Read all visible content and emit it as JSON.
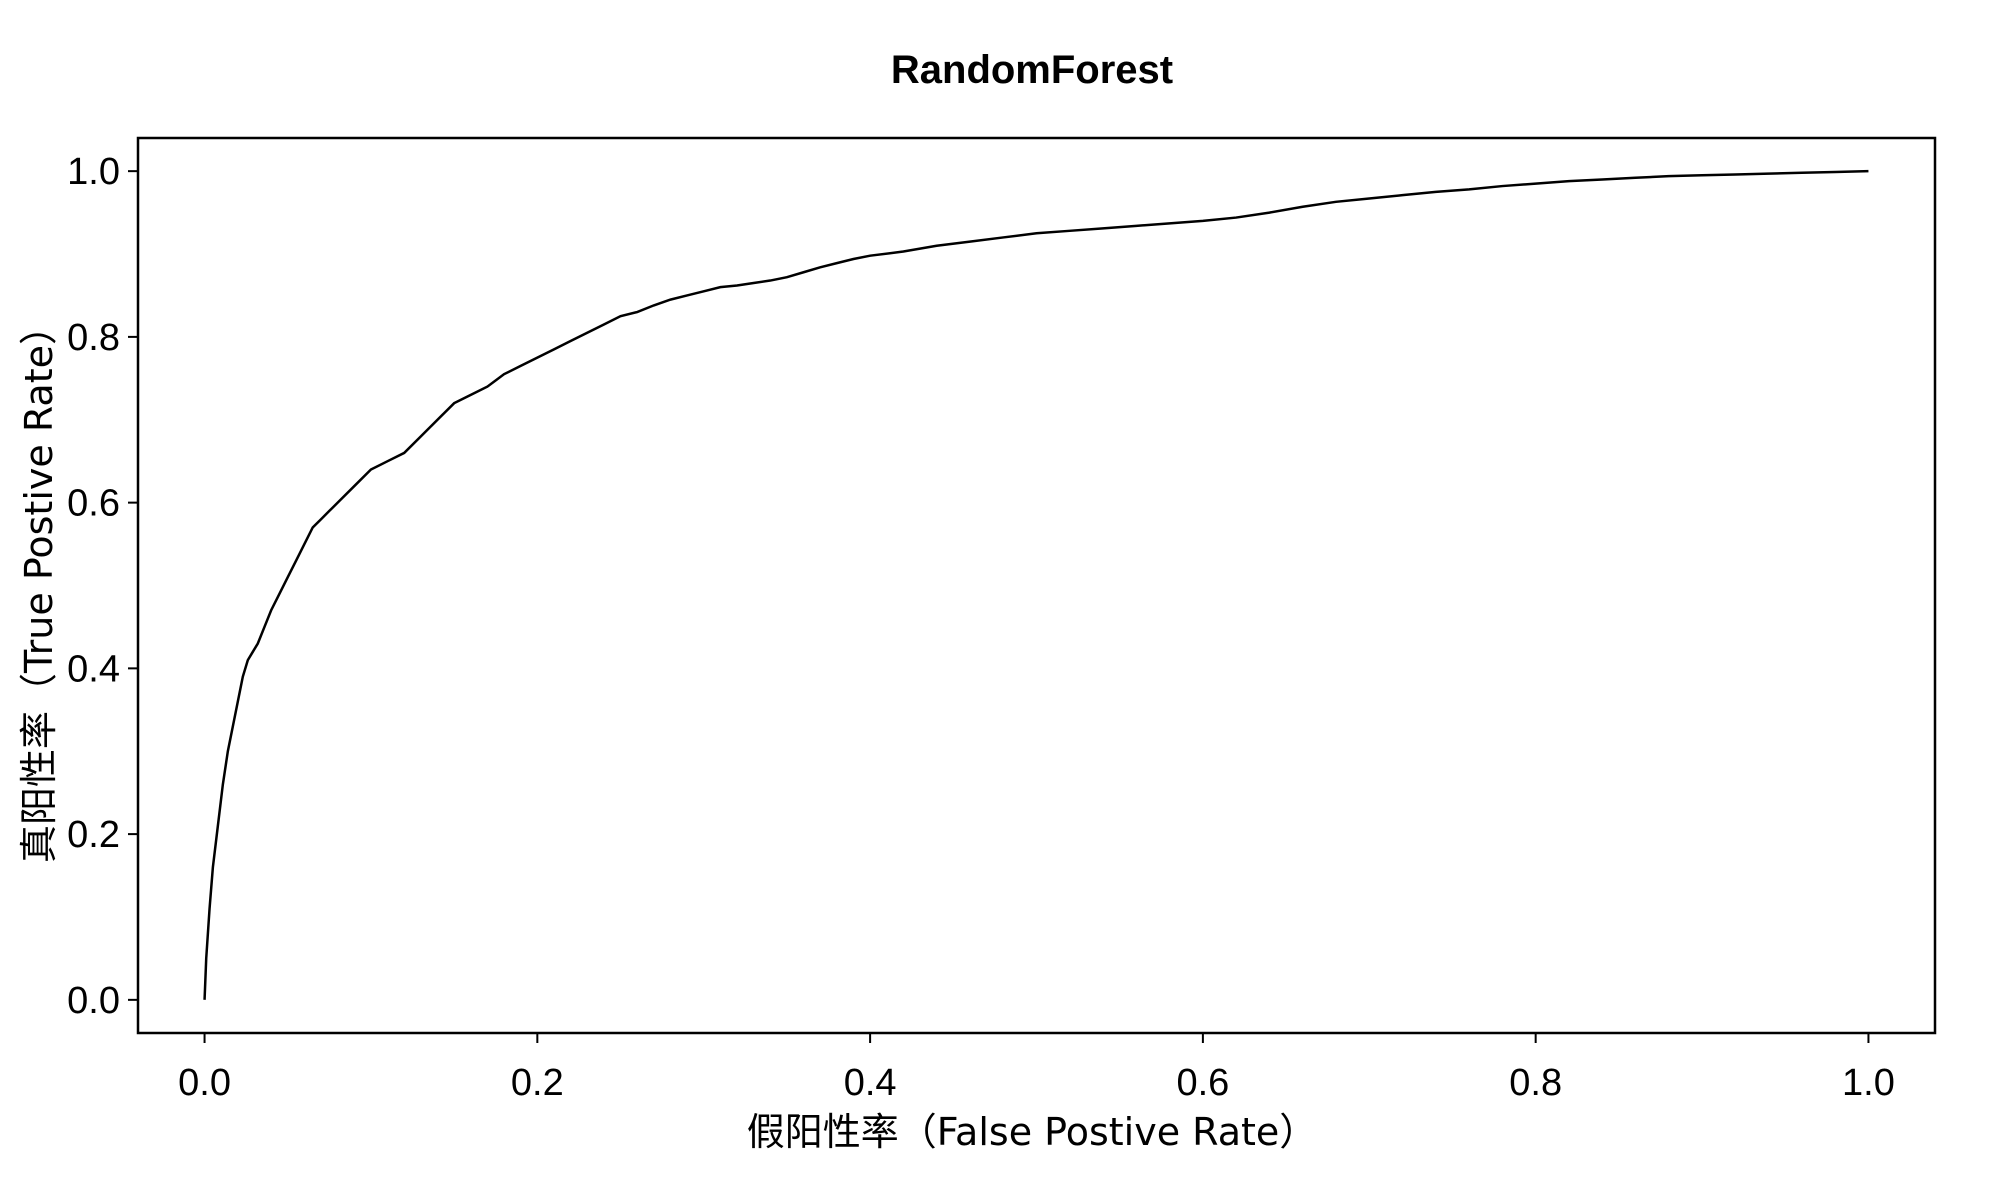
{
  "chart_data": {
    "type": "line",
    "title": "RandomForest",
    "xlabel": "假阳性率（False Postive Rate）",
    "ylabel": "真阳性率（True Postive Rate）",
    "xlim": [
      -0.04,
      1.04
    ],
    "ylim": [
      -0.04,
      1.04
    ],
    "x_ticks": [
      "0.0",
      "0.2",
      "0.4",
      "0.6",
      "0.8",
      "1.0"
    ],
    "y_ticks": [
      "0.0",
      "0.2",
      "0.4",
      "0.6",
      "0.8",
      "1.0"
    ],
    "grid": false,
    "legend": "none",
    "series": [
      {
        "color": "#000000",
        "x": [
          0.0,
          0.001,
          0.003,
          0.005,
          0.008,
          0.011,
          0.014,
          0.017,
          0.02,
          0.023,
          0.026,
          0.029,
          0.032,
          0.036,
          0.04,
          0.045,
          0.05,
          0.055,
          0.06,
          0.065,
          0.07,
          0.075,
          0.08,
          0.09,
          0.1,
          0.11,
          0.12,
          0.13,
          0.14,
          0.15,
          0.16,
          0.17,
          0.18,
          0.19,
          0.2,
          0.21,
          0.22,
          0.23,
          0.24,
          0.25,
          0.26,
          0.27,
          0.28,
          0.29,
          0.3,
          0.31,
          0.32,
          0.33,
          0.34,
          0.35,
          0.36,
          0.37,
          0.38,
          0.39,
          0.4,
          0.42,
          0.44,
          0.46,
          0.48,
          0.5,
          0.52,
          0.54,
          0.56,
          0.58,
          0.6,
          0.62,
          0.64,
          0.66,
          0.68,
          0.7,
          0.72,
          0.74,
          0.76,
          0.78,
          0.8,
          0.82,
          0.84,
          0.86,
          0.88,
          0.9,
          0.92,
          0.94,
          0.96,
          0.98,
          1.0
        ],
        "y": [
          0.0,
          0.05,
          0.11,
          0.16,
          0.21,
          0.26,
          0.3,
          0.33,
          0.36,
          0.39,
          0.41,
          0.42,
          0.43,
          0.45,
          0.47,
          0.49,
          0.51,
          0.53,
          0.55,
          0.57,
          0.58,
          0.59,
          0.6,
          0.62,
          0.64,
          0.65,
          0.66,
          0.68,
          0.7,
          0.72,
          0.73,
          0.74,
          0.755,
          0.765,
          0.775,
          0.785,
          0.795,
          0.805,
          0.815,
          0.825,
          0.83,
          0.838,
          0.845,
          0.85,
          0.855,
          0.86,
          0.862,
          0.865,
          0.868,
          0.872,
          0.878,
          0.884,
          0.889,
          0.894,
          0.898,
          0.903,
          0.91,
          0.915,
          0.92,
          0.925,
          0.928,
          0.931,
          0.934,
          0.937,
          0.94,
          0.944,
          0.95,
          0.957,
          0.963,
          0.967,
          0.971,
          0.975,
          0.978,
          0.982,
          0.985,
          0.988,
          0.99,
          0.992,
          0.994,
          0.995,
          0.996,
          0.997,
          0.998,
          0.999,
          1.0
        ]
      }
    ]
  }
}
